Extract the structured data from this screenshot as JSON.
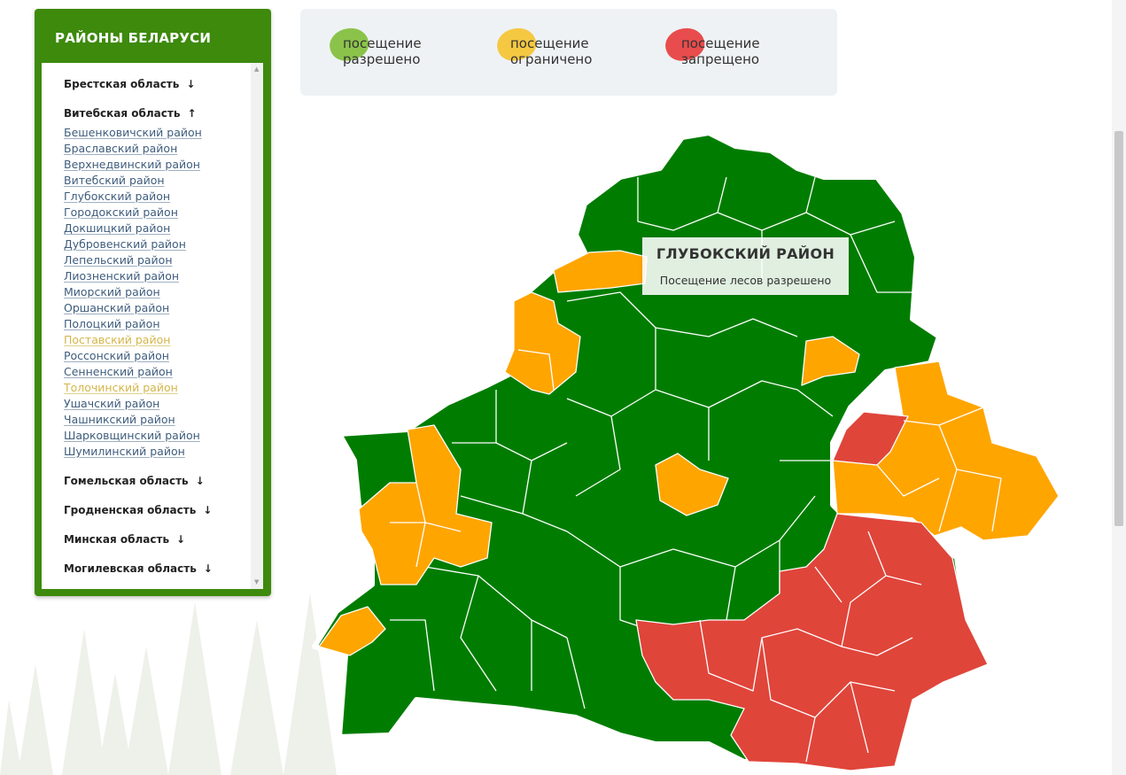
{
  "sidebar": {
    "title": "РАЙОНЫ БЕЛАРУСИ",
    "regions": [
      {
        "name": "Брестская область",
        "arrow": "↓"
      },
      {
        "name": "Витебская область",
        "arrow": "↑",
        "districts": [
          {
            "name": "Бешенковичский район"
          },
          {
            "name": "Браславский район"
          },
          {
            "name": "Верхнедвинский район"
          },
          {
            "name": "Витебский район"
          },
          {
            "name": "Глубокский район"
          },
          {
            "name": "Городокский район"
          },
          {
            "name": "Докшицкий район"
          },
          {
            "name": "Дубровенский район"
          },
          {
            "name": "Лепельский район"
          },
          {
            "name": "Лиозненский район"
          },
          {
            "name": "Миорский район"
          },
          {
            "name": "Оршанский район"
          },
          {
            "name": "Полоцкий район"
          },
          {
            "name": "Поставский район",
            "highlighted": true
          },
          {
            "name": "Россонский район"
          },
          {
            "name": "Сенненский район"
          },
          {
            "name": "Толочинский район",
            "highlighted": true
          },
          {
            "name": "Ушачский район"
          },
          {
            "name": "Чашникский район"
          },
          {
            "name": "Шарковщинский район"
          },
          {
            "name": "Шумилинский район"
          }
        ]
      },
      {
        "name": "Гомельская область",
        "arrow": "↓"
      },
      {
        "name": "Гродненская область",
        "arrow": "↓"
      },
      {
        "name": "Минская область",
        "arrow": "↓"
      },
      {
        "name": "Могилевская область",
        "arrow": "↓"
      }
    ]
  },
  "legend": [
    "посещение разрешено",
    "посещение ограничено",
    "посещение запрещено"
  ],
  "tooltip": {
    "title": "ГЛУБОКСКИЙ РАЙОН",
    "text": "Посещение лесов разрешено"
  }
}
